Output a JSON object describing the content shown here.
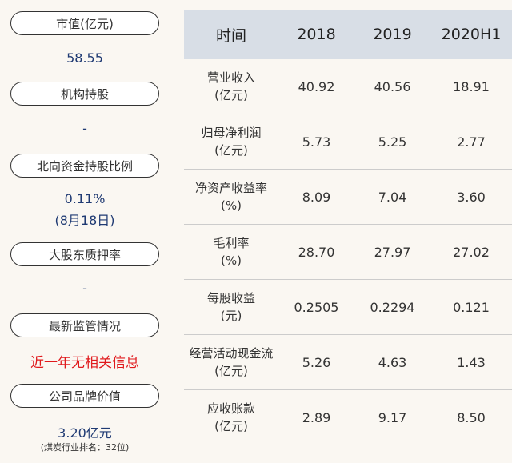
{
  "left": {
    "items": [
      {
        "label": "市值(亿元)",
        "value": "58.55"
      },
      {
        "label": "机构持股",
        "value": "-"
      },
      {
        "label": "北向资金持股比例",
        "value": "0.11%",
        "value2": "(8月18日)"
      },
      {
        "label": "大股东质押率",
        "value": "-"
      },
      {
        "label": "最新监管情况",
        "value": "近一年无相关信息"
      },
      {
        "label": "公司品牌价值",
        "value": "3.20亿元",
        "note": "(煤炭行业排名：32位)"
      }
    ],
    "colors": {
      "value": "#1f3a73",
      "alert": "#e0191c"
    }
  },
  "table": {
    "headers": [
      "时间",
      "2018",
      "2019",
      "2020H1"
    ],
    "rows": [
      {
        "metric": "营业收入",
        "unit": "(亿元)",
        "values": [
          "40.92",
          "40.56",
          "18.91"
        ]
      },
      {
        "metric": "归母净利润",
        "unit": "(亿元)",
        "values": [
          "5.73",
          "5.25",
          "2.77"
        ]
      },
      {
        "metric": "净资产收益率",
        "unit": "(%)",
        "values": [
          "8.09",
          "7.04",
          "3.60"
        ]
      },
      {
        "metric": "毛利率",
        "unit": "(%)",
        "values": [
          "28.70",
          "27.97",
          "27.02"
        ]
      },
      {
        "metric": "每股收益",
        "unit": "(元)",
        "values": [
          "0.2505",
          "0.2294",
          "0.121"
        ]
      },
      {
        "metric": "经营活动现金流",
        "unit": "(亿元)",
        "values": [
          "5.26",
          "4.63",
          "1.43"
        ]
      },
      {
        "metric": "应收账款",
        "unit": "(亿元)",
        "values": [
          "2.89",
          "9.17",
          "8.50"
        ]
      }
    ]
  }
}
